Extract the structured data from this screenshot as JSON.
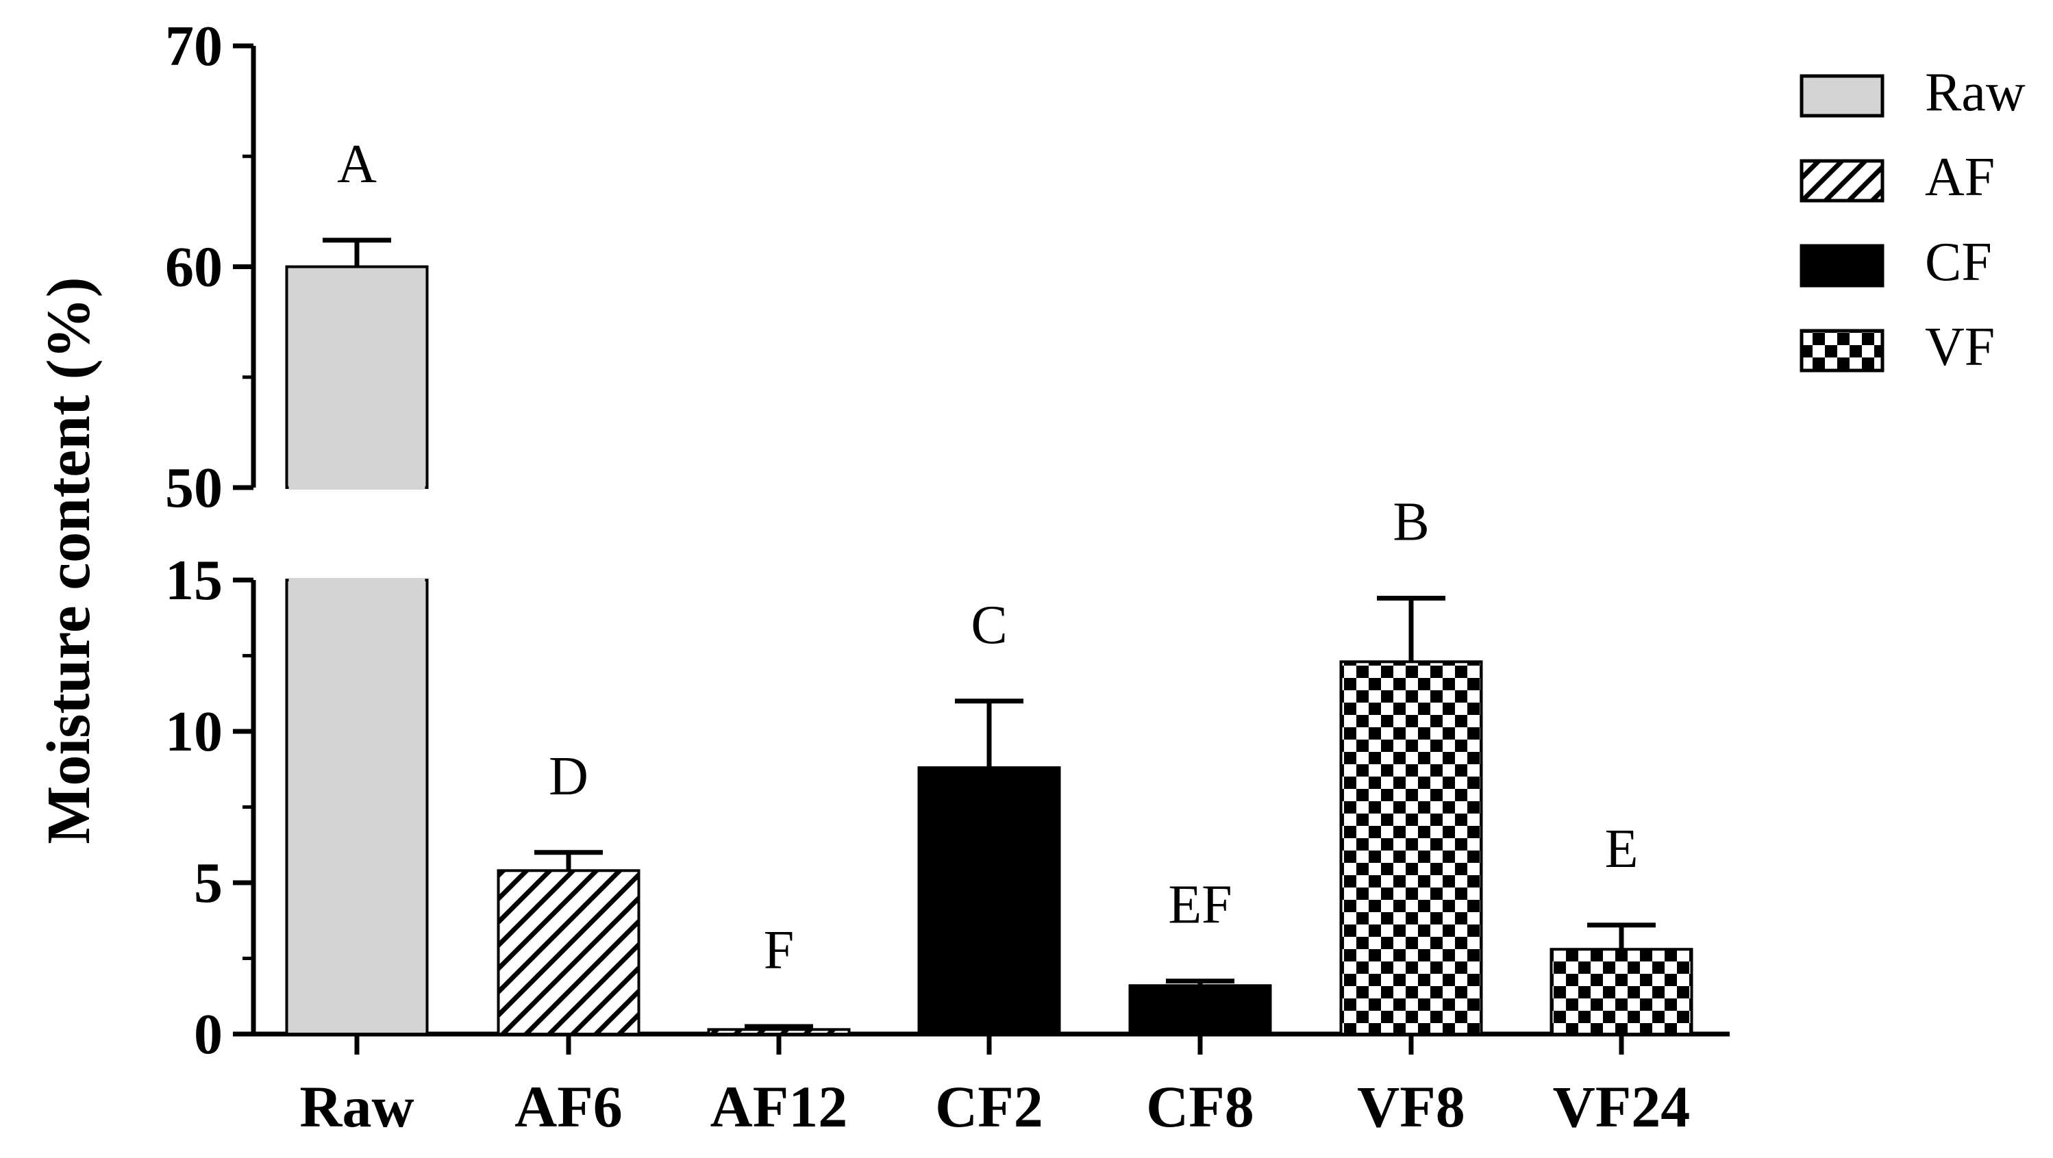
{
  "chart_data": {
    "type": "bar",
    "title": "",
    "xlabel": "",
    "ylabel": "Moisture content (%)",
    "y_axis_break": {
      "lower_range": [
        0,
        15
      ],
      "upper_range": [
        50,
        70
      ],
      "lower_ticks": [
        0,
        5,
        10,
        15
      ],
      "upper_ticks": [
        50,
        60,
        70
      ],
      "lower_tick_labels": [
        "0",
        "5",
        "10",
        "15"
      ],
      "upper_tick_labels": [
        "50",
        "60",
        "70"
      ]
    },
    "categories": [
      "Raw",
      "AF6",
      "AF12",
      "CF2",
      "CF8",
      "VF8",
      "VF24"
    ],
    "values": [
      60.0,
      5.4,
      0.15,
      8.8,
      1.6,
      12.3,
      2.8
    ],
    "errors": [
      1.2,
      0.6,
      0.1,
      2.2,
      0.15,
      2.1,
      0.8
    ],
    "groups": [
      "Raw",
      "AF",
      "AF",
      "CF",
      "CF",
      "VF",
      "VF"
    ],
    "significance_letters": [
      "A",
      "D",
      "F",
      "C",
      "EF",
      "B",
      "E"
    ],
    "legend": {
      "position": "top-right",
      "items": [
        {
          "label": "Raw",
          "pattern": "solid-lightgray"
        },
        {
          "label": "AF",
          "pattern": "diagonal-hatch"
        },
        {
          "label": "CF",
          "pattern": "solid-black"
        },
        {
          "label": "VF",
          "pattern": "checkerboard"
        }
      ]
    },
    "colors": {
      "raw_fill": "#d4d4d4",
      "ink": "#000000",
      "background": "#ffffff"
    }
  }
}
